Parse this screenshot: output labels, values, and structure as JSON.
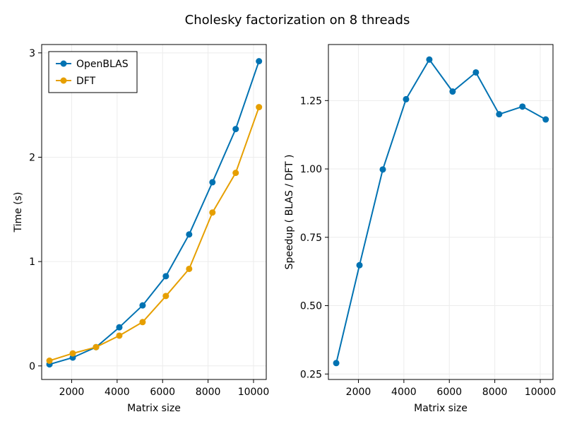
{
  "figure_title": "Cholesky factorization on 8 threads",
  "colors": {
    "openblas": "#0072b2",
    "dft": "#e69f00",
    "grid": "#ececec",
    "frame": "#000000"
  },
  "chart_data": [
    {
      "type": "line",
      "xlabel": "Matrix size",
      "ylabel": "Time (s)",
      "xlim": [
        680,
        10560
      ],
      "ylim": [
        -0.13,
        3.08
      ],
      "xticks": [
        2000,
        4000,
        6000,
        8000,
        10000
      ],
      "yticks": [
        0,
        1,
        2,
        3
      ],
      "ytick_labels": [
        "0",
        "1",
        "2",
        "3"
      ],
      "grid": true,
      "legend": "top-left",
      "x": [
        1024,
        2048,
        3072,
        4096,
        5120,
        6144,
        7168,
        8192,
        9216,
        10240
      ],
      "series": [
        {
          "name": "OpenBLAS",
          "color": "#0072b2",
          "values": [
            0.015,
            0.08,
            0.18,
            0.37,
            0.58,
            0.86,
            1.26,
            1.76,
            2.27,
            2.92
          ]
        },
        {
          "name": "DFT",
          "color": "#e69f00",
          "values": [
            0.05,
            0.12,
            0.18,
            0.29,
            0.42,
            0.67,
            0.93,
            1.47,
            1.85,
            2.48
          ]
        }
      ]
    },
    {
      "type": "line",
      "xlabel": "Matrix size",
      "ylabel": "Speedup ( BLAS / DFT )",
      "xlim": [
        680,
        10560
      ],
      "ylim": [
        0.23,
        1.455
      ],
      "xticks": [
        2000,
        4000,
        6000,
        8000,
        10000
      ],
      "yticks": [
        0.25,
        0.5,
        0.75,
        1.0,
        1.25
      ],
      "ytick_labels": [
        "0.25",
        "0.50",
        "0.75",
        "1.00",
        "1.25"
      ],
      "grid": true,
      "x": [
        1024,
        2048,
        3072,
        4096,
        5120,
        6144,
        7168,
        8192,
        9216,
        10240
      ],
      "series": [
        {
          "color": "#0072b2",
          "values": [
            0.29,
            0.648,
            0.998,
            1.255,
            1.4,
            1.283,
            1.353,
            1.2,
            1.228,
            1.181
          ]
        }
      ]
    }
  ]
}
